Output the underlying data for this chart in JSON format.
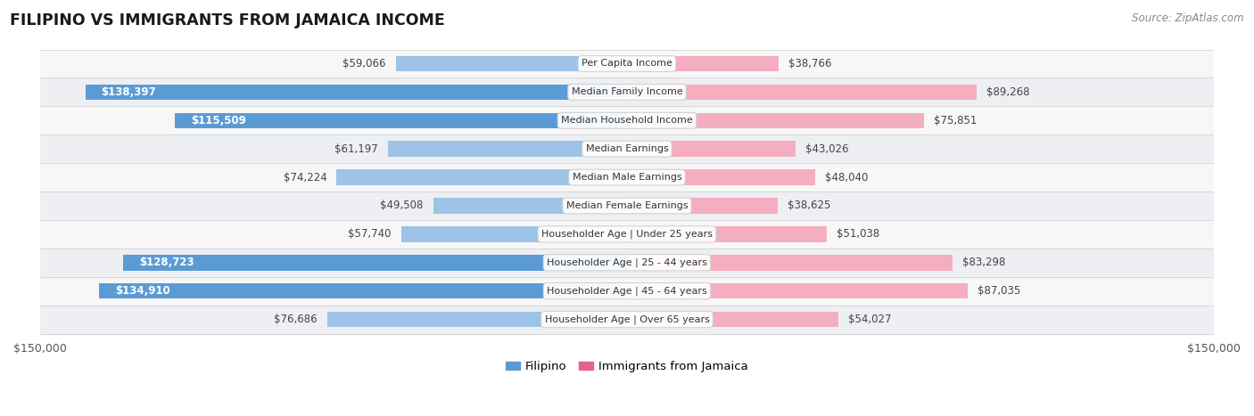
{
  "title": "FILIPINO VS IMMIGRANTS FROM JAMAICA INCOME",
  "source": "Source: ZipAtlas.com",
  "categories": [
    "Per Capita Income",
    "Median Family Income",
    "Median Household Income",
    "Median Earnings",
    "Median Male Earnings",
    "Median Female Earnings",
    "Householder Age | Under 25 years",
    "Householder Age | 25 - 44 years",
    "Householder Age | 45 - 64 years",
    "Householder Age | Over 65 years"
  ],
  "filipino_values": [
    59066,
    138397,
    115509,
    61197,
    74224,
    49508,
    57740,
    128723,
    134910,
    76686
  ],
  "jamaica_values": [
    38766,
    89268,
    75851,
    43026,
    48040,
    38625,
    51038,
    83298,
    87035,
    54027
  ],
  "filipino_labels": [
    "$59,066",
    "$138,397",
    "$115,509",
    "$61,197",
    "$74,224",
    "$49,508",
    "$57,740",
    "$128,723",
    "$134,910",
    "$76,686"
  ],
  "jamaica_labels": [
    "$38,766",
    "$89,268",
    "$75,851",
    "$43,026",
    "$48,040",
    "$38,625",
    "$51,038",
    "$83,298",
    "$87,035",
    "$54,027"
  ],
  "max_value": 150000,
  "filipino_color_strong": "#5b9bd5",
  "filipino_color_light": "#9dc3e6",
  "jamaica_color_strong": "#e4638a",
  "jamaica_color_light": "#f4aec0",
  "filipino_strong_threshold": 95000,
  "jamaica_strong_threshold": 95000,
  "background_color": "#ffffff",
  "row_colors": [
    "#f7f7f8",
    "#eeeff2"
  ],
  "legend_filipino": "Filipino",
  "legend_jamaica": "Immigrants from Jamaica",
  "xlabel_left": "$150,000",
  "xlabel_right": "$150,000"
}
